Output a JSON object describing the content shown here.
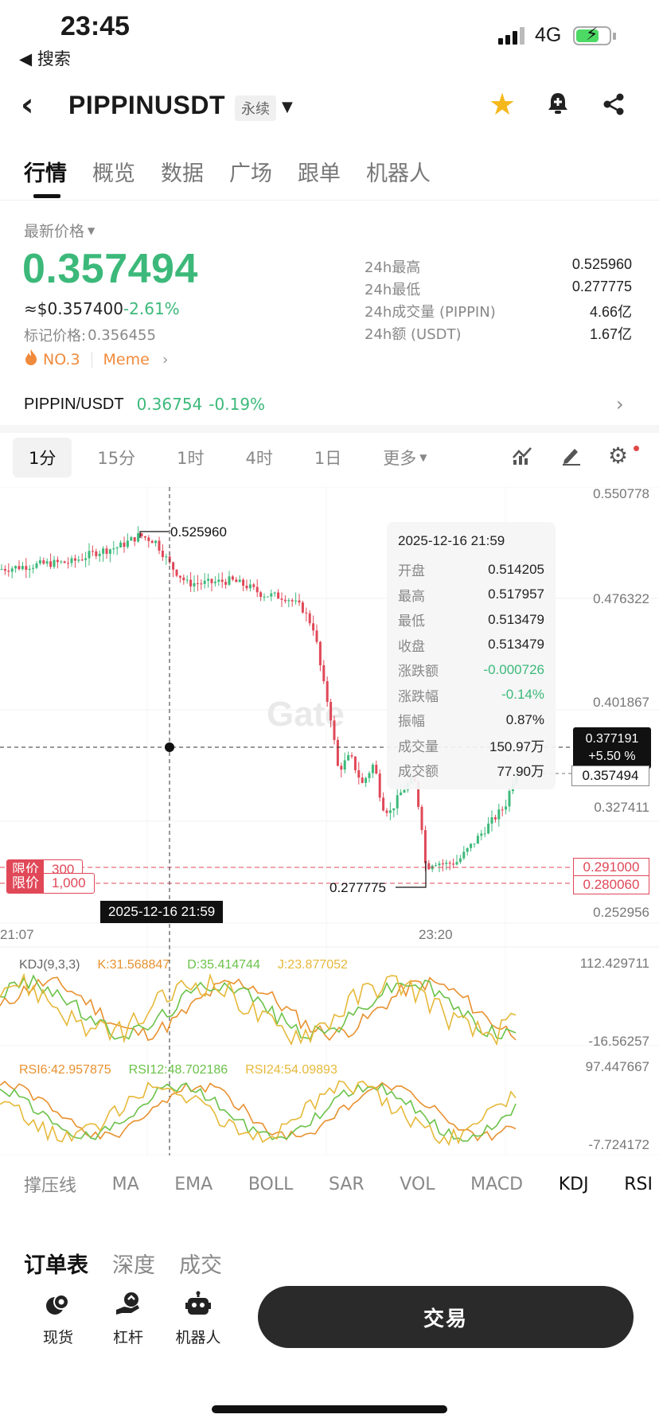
{
  "status_bar": {
    "time": "23:45",
    "back_app": "◀ 搜索",
    "network": "4G"
  },
  "header": {
    "pair": "PIPPINUSDT",
    "contract_type": "永续"
  },
  "main_tabs": [
    "行情",
    "概览",
    "数据",
    "广场",
    "跟单",
    "机器人"
  ],
  "price": {
    "label": "最新价格",
    "last": "0.357494",
    "usd": "≈$0.357400",
    "change": "-2.61%",
    "mark_label": "标记价格:",
    "mark": "0.356455",
    "rank": "NO.3",
    "tag": "Meme"
  },
  "stats": [
    {
      "label": "24h最高",
      "value": "0.525960"
    },
    {
      "label": "24h最低",
      "value": "0.277775"
    },
    {
      "label": "24h成交量 (PIPPIN)",
      "value": "4.66亿"
    },
    {
      "label": "24h额 (USDT)",
      "value": "1.67亿"
    }
  ],
  "spot": {
    "pair": "PIPPIN/USDT",
    "price": "0.36754",
    "change": "-0.19%"
  },
  "intervals": [
    "1分",
    "15分",
    "1时",
    "4时",
    "1日",
    "更多"
  ],
  "chart": {
    "y_ticks": [
      "0.550778",
      "0.476322",
      "0.401867",
      "0.327411",
      "0.252956"
    ],
    "high_label": "0.525960",
    "low_label": "0.277775",
    "time_ticks": [
      "21:07",
      "23:20"
    ],
    "watermark": "Gate",
    "crosshair_date": "2025-12-16 21:59",
    "crosshair_price": "0.377191",
    "crosshair_change": "+5.50 %",
    "last_price_tag": "0.357494",
    "limit_orders": [
      {
        "label": "限价",
        "qty": "300",
        "price": "0.291000"
      },
      {
        "label": "限价",
        "qty": "1,000",
        "price": "0.280060"
      }
    ]
  },
  "tooltip": {
    "date": "2025-12-16 21:59",
    "rows": [
      {
        "k": "开盘",
        "v": "0.514205"
      },
      {
        "k": "最高",
        "v": "0.517957"
      },
      {
        "k": "最低",
        "v": "0.513479"
      },
      {
        "k": "收盘",
        "v": "0.513479"
      },
      {
        "k": "涨跌额",
        "v": "-0.000726"
      },
      {
        "k": "涨跌幅",
        "v": "-0.14%"
      },
      {
        "k": "振幅",
        "v": "0.87%"
      },
      {
        "k": "成交量",
        "v": "150.97万"
      },
      {
        "k": "成交额",
        "v": "77.90万"
      }
    ]
  },
  "kdj": {
    "name": "KDJ(9,3,3)",
    "k": "K:31.568847",
    "d": "D:35.414744",
    "j": "J:23.877052",
    "max": "112.429711",
    "min": "-16.56257"
  },
  "rsi": {
    "r6": "RSI6:42.957875",
    "r12": "RSI12:48.702186",
    "r24": "RSI24:54.09893",
    "max": "97.447667",
    "min": "-7.724172"
  },
  "indicator_tabs": [
    "撑压线",
    "MA",
    "EMA",
    "BOLL",
    "SAR",
    "VOL",
    "MACD",
    "KDJ",
    "RSI"
  ],
  "order_tabs": [
    "订单表",
    "深度",
    "成交"
  ],
  "bottom": {
    "spot": "现货",
    "margin": "杠杆",
    "bot": "机器人",
    "trade": "交易"
  },
  "colors": {
    "up": "#3cb97a",
    "down": "#e04858",
    "accent": "#f5b81c"
  }
}
